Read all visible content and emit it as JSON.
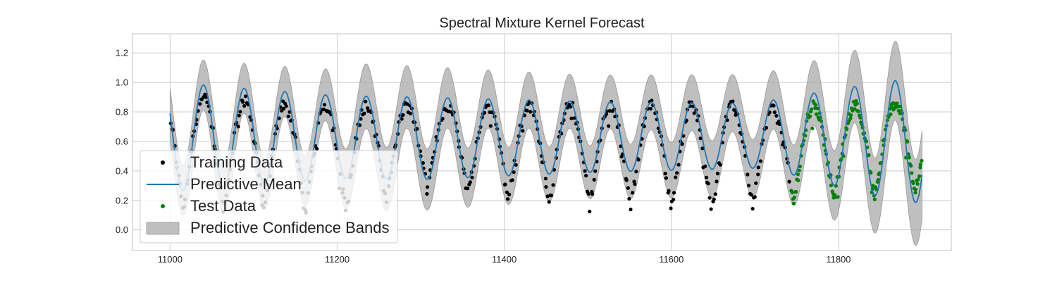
{
  "chart_data": {
    "type": "line",
    "title": "Spectral Mixture Kernel Forecast",
    "xlabel": "",
    "ylabel": "",
    "xlim": [
      10955,
      11935
    ],
    "ylim": [
      -0.14,
      1.33
    ],
    "x_ticks": [
      11000,
      11200,
      11400,
      11600,
      11800
    ],
    "x_tick_labels": [
      "11000",
      "11200",
      "11400",
      "11600",
      "11800"
    ],
    "y_ticks": [
      0.0,
      0.2,
      0.4,
      0.6,
      0.8,
      1.0,
      1.2
    ],
    "y_tick_labels": [
      "0.0",
      "0.2",
      "0.4",
      "0.6",
      "0.8",
      "1.0",
      "1.2"
    ],
    "grid": true,
    "legend_position": "lower-left",
    "legend": [
      {
        "label": "Training Data",
        "kind": "dots",
        "color": "#000000"
      },
      {
        "label": "Predictive Mean",
        "kind": "line",
        "color": "#1f77b4"
      },
      {
        "label": "Test Data",
        "kind": "dots",
        "color": "#008000"
      },
      {
        "label": "Predictive Confidence Bands",
        "kind": "patch",
        "color": "#a9a9a9"
      }
    ],
    "mean_line": {
      "x_range": [
        11000,
        11900
      ],
      "period": 48.7,
      "phase_at_peak": 11040,
      "center": [
        [
          11000,
          0.63
        ],
        [
          11200,
          0.63
        ],
        [
          11300,
          0.62
        ],
        [
          11500,
          0.63
        ],
        [
          11740,
          0.64
        ],
        [
          11900,
          0.6
        ]
      ],
      "amplitude": [
        [
          11000,
          0.37
        ],
        [
          11200,
          0.28
        ],
        [
          11300,
          0.28
        ],
        [
          11500,
          0.24
        ],
        [
          11700,
          0.22
        ],
        [
          11740,
          0.26
        ],
        [
          11860,
          0.4
        ],
        [
          11900,
          0.42
        ]
      ],
      "color": "#1f77b4"
    },
    "confidence_band": {
      "halfwidth": [
        [
          11000,
          0.17
        ],
        [
          11180,
          0.17
        ],
        [
          11230,
          0.22
        ],
        [
          11500,
          0.18
        ],
        [
          11740,
          0.2
        ],
        [
          11800,
          0.24
        ],
        [
          11860,
          0.26
        ],
        [
          11900,
          0.3
        ]
      ],
      "color": "#a9a9a9"
    },
    "training_data": {
      "x_range": [
        11000,
        11742
      ],
      "count": 470,
      "peak_level": [
        [
          11000,
          0.9
        ],
        [
          11200,
          0.84
        ],
        [
          11400,
          0.84
        ],
        [
          11600,
          0.85
        ],
        [
          11740,
          0.82
        ]
      ],
      "trough_level": [
        [
          11000,
          0.15
        ],
        [
          11200,
          0.12
        ],
        [
          11300,
          0.28
        ],
        [
          11500,
          0.17
        ],
        [
          11640,
          0.14
        ],
        [
          11740,
          0.2
        ]
      ],
      "color": "#000000"
    },
    "test_data": {
      "x_range": [
        11743,
        11900
      ],
      "count": 160,
      "peak_level": [
        [
          11743,
          0.83
        ],
        [
          11900,
          0.86
        ]
      ],
      "trough_level": [
        [
          11743,
          0.18
        ],
        [
          11900,
          0.27
        ]
      ],
      "color": "#008000"
    }
  }
}
